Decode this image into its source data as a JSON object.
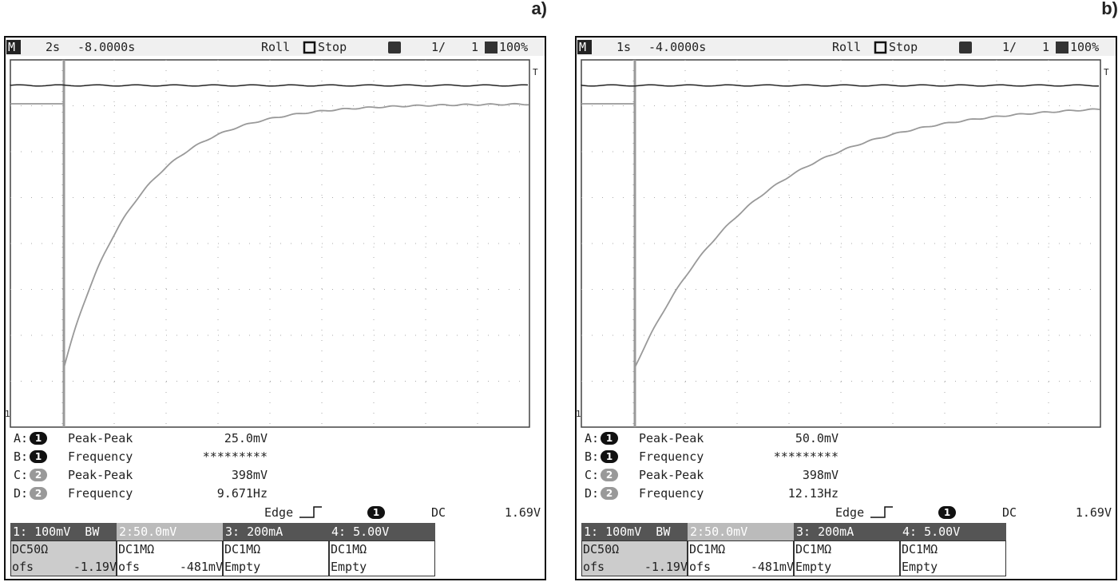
{
  "panels": [
    {
      "label": "a)",
      "header": {
        "mode": "M",
        "timebase": "2s",
        "position": "-8.0000s",
        "acquisition": "Roll",
        "state": "Stop",
        "page": "1/",
        "pages": "1",
        "zoom": "100%"
      },
      "markers": {
        "trigger": "T",
        "ground": "1"
      },
      "measurements": [
        {
          "slot": "A:",
          "channel": "1",
          "name": "Peak-Peak",
          "value": "25.0mV"
        },
        {
          "slot": "B:",
          "channel": "1",
          "name": "Frequency",
          "value": "*********"
        },
        {
          "slot": "C:",
          "channel": "2",
          "name": "Peak-Peak",
          "value": "398mV"
        },
        {
          "slot": "D:",
          "channel": "2",
          "name": "Frequency",
          "value": "9.671Hz"
        }
      ],
      "trigger": {
        "type": "Edge",
        "channel": "1",
        "coupling": "DC",
        "level": "1.69V"
      },
      "channels": [
        {
          "head": "1: 100mV  BW",
          "coupling": "DC50Ω",
          "offset_label": "ofs",
          "offset": "-1.19V"
        },
        {
          "head": "2:50.0mV",
          "coupling": "DC1MΩ",
          "offset_label": "ofs",
          "offset": "-481mV"
        },
        {
          "head": "3: 200mA",
          "coupling": "DC1MΩ",
          "status": "Empty"
        },
        {
          "head": "4: 5.00V",
          "coupling": "DC1MΩ",
          "status": "Empty"
        }
      ]
    },
    {
      "label": "b)",
      "header": {
        "mode": "M",
        "timebase": "1s",
        "position": "-4.0000s",
        "acquisition": "Roll",
        "state": "Stop",
        "page": "1/",
        "pages": "1",
        "zoom": "100%"
      },
      "markers": {
        "trigger": "T",
        "ground": "1"
      },
      "measurements": [
        {
          "slot": "A:",
          "channel": "1",
          "name": "Peak-Peak",
          "value": "50.0mV"
        },
        {
          "slot": "B:",
          "channel": "1",
          "name": "Frequency",
          "value": "*********"
        },
        {
          "slot": "C:",
          "channel": "2",
          "name": "Peak-Peak",
          "value": "398mV"
        },
        {
          "slot": "D:",
          "channel": "2",
          "name": "Frequency",
          "value": "12.13Hz"
        }
      ],
      "trigger": {
        "type": "Edge",
        "channel": "1",
        "coupling": "DC",
        "level": "1.69V"
      },
      "channels": [
        {
          "head": "1: 100mV  BW",
          "coupling": "DC50Ω",
          "offset_label": "ofs",
          "offset": "-1.19V"
        },
        {
          "head": "2:50.0mV",
          "coupling": "DC1MΩ",
          "offset_label": "ofs",
          "offset": "-481mV"
        },
        {
          "head": "3: 200mA",
          "coupling": "DC1MΩ",
          "status": "Empty"
        },
        {
          "head": "4: 5.00V",
          "coupling": "DC1MΩ",
          "status": "Empty"
        }
      ]
    }
  ]
}
